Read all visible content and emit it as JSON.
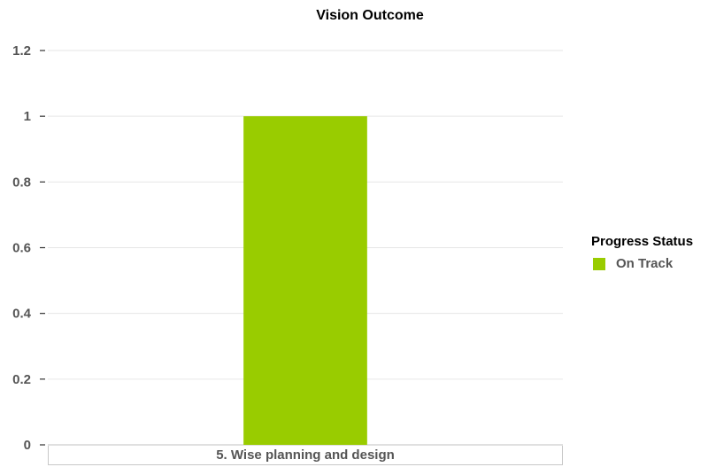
{
  "chart_data": {
    "type": "bar",
    "title": "Vision Outcome",
    "categories": [
      "5.  Wise planning and design"
    ],
    "series": [
      {
        "name": "On Track",
        "values": [
          1
        ],
        "color": "#99cc00"
      }
    ],
    "ylim": [
      0,
      1.2
    ],
    "yticks": [
      "0",
      "0.2",
      "0.4",
      "0.6",
      "0.8",
      "1",
      "1.2"
    ],
    "grid": true,
    "legend": {
      "title": "Progress Status",
      "position": "right"
    }
  }
}
